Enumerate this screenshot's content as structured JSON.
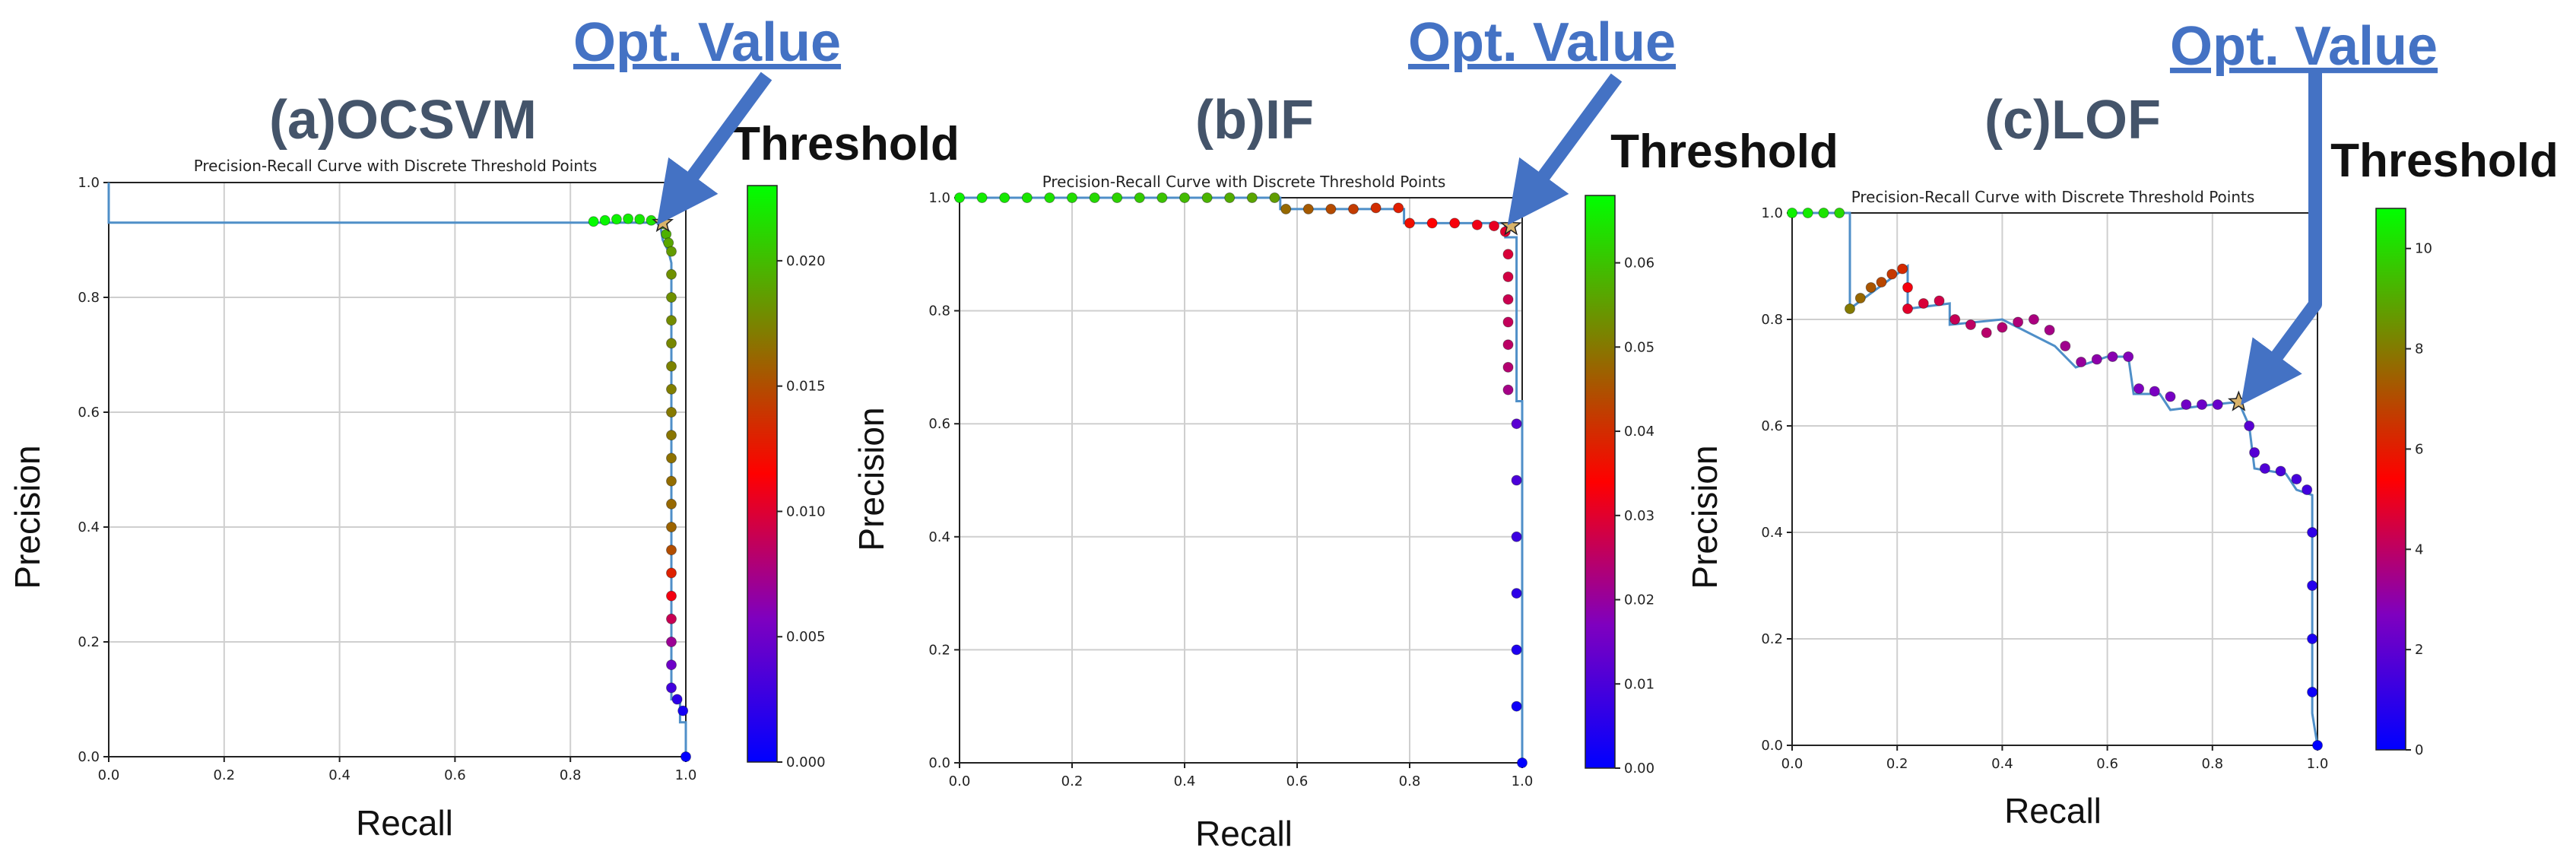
{
  "colors": {
    "annotation": "#4472c4",
    "panel_title": "#44546a",
    "line": "#4f8fc8",
    "grid": "#cfcfcf",
    "colorbar": [
      "#0000ff",
      "#7f00bf",
      "#ff0000",
      "#7f7f00",
      "#00ff00"
    ]
  },
  "chart_data": [
    {
      "type": "line",
      "panel_label": "(a)OCSVM",
      "title": "Precision-Recall Curve with Discrete Threshold Points",
      "xlabel": "Recall",
      "ylabel": "Precision",
      "xlim": [
        0,
        1
      ],
      "ylim": [
        0,
        1
      ],
      "xticks": [
        "0.0",
        "0.2",
        "0.4",
        "0.6",
        "0.8",
        "1.0"
      ],
      "yticks": [
        "0.0",
        "0.2",
        "0.4",
        "0.6",
        "0.8",
        "1.0"
      ],
      "grid": true,
      "colorbar": {
        "label": "Threshold",
        "min": 0.0,
        "max": 0.023,
        "ticks": [
          "0.000",
          "0.005",
          "0.010",
          "0.015",
          "0.020"
        ],
        "tick_values": [
          0.0,
          0.005,
          0.01,
          0.015,
          0.02
        ]
      },
      "annotation": {
        "label": "Opt. Value",
        "recall": 0.96,
        "precision": 0.93
      },
      "curve": [
        [
          0,
          1.0
        ],
        [
          0,
          0.93
        ],
        [
          0.955,
          0.93
        ],
        [
          0.96,
          0.9
        ],
        [
          0.97,
          0.88
        ],
        [
          0.975,
          0.86
        ],
        [
          0.975,
          0.1
        ],
        [
          0.99,
          0.1
        ],
        [
          0.99,
          0.06
        ],
        [
          1.0,
          0.06
        ],
        [
          1.0,
          0.0
        ]
      ],
      "points": [
        [
          0.84,
          0.932,
          0.0228
        ],
        [
          0.86,
          0.934,
          0.0226
        ],
        [
          0.88,
          0.936,
          0.0224
        ],
        [
          0.9,
          0.937,
          0.0222
        ],
        [
          0.92,
          0.936,
          0.022
        ],
        [
          0.94,
          0.934,
          0.0218
        ],
        [
          0.96,
          0.928,
          0.02
        ],
        [
          0.966,
          0.91,
          0.0195
        ],
        [
          0.97,
          0.895,
          0.019
        ],
        [
          0.975,
          0.88,
          0.0185
        ],
        [
          0.975,
          0.84,
          0.018
        ],
        [
          0.975,
          0.8,
          0.018
        ],
        [
          0.975,
          0.76,
          0.0178
        ],
        [
          0.975,
          0.72,
          0.0176
        ],
        [
          0.975,
          0.68,
          0.0174
        ],
        [
          0.975,
          0.64,
          0.0172
        ],
        [
          0.975,
          0.6,
          0.017
        ],
        [
          0.975,
          0.56,
          0.0168
        ],
        [
          0.975,
          0.52,
          0.0166
        ],
        [
          0.975,
          0.48,
          0.0164
        ],
        [
          0.975,
          0.44,
          0.0162
        ],
        [
          0.975,
          0.4,
          0.016
        ],
        [
          0.975,
          0.36,
          0.015
        ],
        [
          0.975,
          0.32,
          0.013
        ],
        [
          0.975,
          0.28,
          0.011
        ],
        [
          0.975,
          0.24,
          0.009
        ],
        [
          0.975,
          0.2,
          0.007
        ],
        [
          0.975,
          0.16,
          0.005
        ],
        [
          0.975,
          0.12,
          0.003
        ],
        [
          0.985,
          0.1,
          0.002
        ],
        [
          0.995,
          0.08,
          0.001
        ],
        [
          1.0,
          0.0,
          0.0
        ]
      ]
    },
    {
      "type": "line",
      "panel_label": "(b)IF",
      "title": "Precision-Recall Curve with Discrete Threshold Points",
      "xlabel": "Recall",
      "ylabel": "Precision",
      "xlim": [
        0,
        1
      ],
      "ylim": [
        0,
        1
      ],
      "xticks": [
        "0.0",
        "0.2",
        "0.4",
        "0.6",
        "0.8",
        "1.0"
      ],
      "yticks": [
        "0.0",
        "0.2",
        "0.4",
        "0.6",
        "0.8",
        "1.0"
      ],
      "grid": true,
      "colorbar": {
        "label": "Threshold",
        "min": 0.0,
        "max": 0.068,
        "ticks": [
          "0.00",
          "0.01",
          "0.02",
          "0.03",
          "0.04",
          "0.05",
          "0.06"
        ],
        "tick_values": [
          0.0,
          0.01,
          0.02,
          0.03,
          0.04,
          0.05,
          0.06
        ]
      },
      "annotation": {
        "label": "Opt. Value",
        "recall": 0.98,
        "precision": 0.95
      },
      "curve": [
        [
          0,
          1.0
        ],
        [
          0.57,
          1.0
        ],
        [
          0.57,
          0.98
        ],
        [
          0.79,
          0.98
        ],
        [
          0.79,
          0.955
        ],
        [
          0.97,
          0.955
        ],
        [
          0.97,
          0.93
        ],
        [
          0.99,
          0.93
        ],
        [
          0.99,
          0.64
        ],
        [
          1.0,
          0.64
        ],
        [
          1.0,
          0.0
        ]
      ],
      "points": [
        [
          0.0,
          1.0,
          0.066
        ],
        [
          0.04,
          1.0,
          0.0655
        ],
        [
          0.08,
          1.0,
          0.065
        ],
        [
          0.12,
          1.0,
          0.0645
        ],
        [
          0.16,
          1.0,
          0.064
        ],
        [
          0.2,
          1.0,
          0.0635
        ],
        [
          0.24,
          1.0,
          0.063
        ],
        [
          0.28,
          1.0,
          0.062
        ],
        [
          0.32,
          1.0,
          0.061
        ],
        [
          0.36,
          1.0,
          0.06
        ],
        [
          0.4,
          1.0,
          0.059
        ],
        [
          0.44,
          1.0,
          0.058
        ],
        [
          0.48,
          1.0,
          0.057
        ],
        [
          0.52,
          1.0,
          0.056
        ],
        [
          0.56,
          1.0,
          0.055
        ],
        [
          0.58,
          0.98,
          0.048
        ],
        [
          0.62,
          0.98,
          0.046
        ],
        [
          0.66,
          0.98,
          0.044
        ],
        [
          0.7,
          0.98,
          0.042
        ],
        [
          0.74,
          0.982,
          0.04
        ],
        [
          0.78,
          0.982,
          0.038
        ],
        [
          0.8,
          0.955,
          0.036
        ],
        [
          0.84,
          0.955,
          0.034
        ],
        [
          0.88,
          0.955,
          0.033
        ],
        [
          0.92,
          0.952,
          0.032
        ],
        [
          0.95,
          0.95,
          0.031
        ],
        [
          0.97,
          0.94,
          0.03
        ],
        [
          0.975,
          0.9,
          0.029
        ],
        [
          0.975,
          0.86,
          0.028
        ],
        [
          0.975,
          0.82,
          0.027
        ],
        [
          0.975,
          0.78,
          0.026
        ],
        [
          0.975,
          0.74,
          0.025
        ],
        [
          0.975,
          0.7,
          0.024
        ],
        [
          0.975,
          0.66,
          0.022
        ],
        [
          0.99,
          0.6,
          0.012
        ],
        [
          0.99,
          0.5,
          0.01
        ],
        [
          0.99,
          0.4,
          0.008
        ],
        [
          0.99,
          0.3,
          0.006
        ],
        [
          0.99,
          0.2,
          0.004
        ],
        [
          0.99,
          0.1,
          0.002
        ],
        [
          1.0,
          0.0,
          0.0
        ]
      ]
    },
    {
      "type": "line",
      "panel_label": "(c)LOF",
      "title": "Precision-Recall Curve with Discrete Threshold Points",
      "xlabel": "Recall",
      "ylabel": "Precision",
      "xlim": [
        0,
        1
      ],
      "ylim": [
        0,
        1
      ],
      "xticks": [
        "0.0",
        "0.2",
        "0.4",
        "0.6",
        "0.8",
        "1.0"
      ],
      "yticks": [
        "0.0",
        "0.2",
        "0.4",
        "0.6",
        "0.8",
        "1.0"
      ],
      "grid": true,
      "colorbar": {
        "label": "Threshold",
        "min": 0,
        "max": 10.8,
        "ticks": [
          "0",
          "2",
          "4",
          "6",
          "8",
          "10"
        ],
        "tick_values": [
          0,
          2,
          4,
          6,
          8,
          10
        ]
      },
      "annotation": {
        "label": "Opt. Value",
        "recall": 0.85,
        "precision": 0.645
      },
      "curve": [
        [
          0,
          1.0
        ],
        [
          0.11,
          1.0
        ],
        [
          0.11,
          0.82
        ],
        [
          0.22,
          0.9
        ],
        [
          0.22,
          0.82
        ],
        [
          0.3,
          0.83
        ],
        [
          0.3,
          0.79
        ],
        [
          0.4,
          0.8
        ],
        [
          0.5,
          0.75
        ],
        [
          0.54,
          0.71
        ],
        [
          0.6,
          0.73
        ],
        [
          0.64,
          0.73
        ],
        [
          0.65,
          0.66
        ],
        [
          0.7,
          0.66
        ],
        [
          0.72,
          0.63
        ],
        [
          0.8,
          0.64
        ],
        [
          0.85,
          0.645
        ],
        [
          0.87,
          0.6
        ],
        [
          0.88,
          0.52
        ],
        [
          0.94,
          0.51
        ],
        [
          0.96,
          0.48
        ],
        [
          0.99,
          0.47
        ],
        [
          0.99,
          0.06
        ],
        [
          1.0,
          0.0
        ]
      ],
      "points": [
        [
          0.0,
          1.0,
          10.5
        ],
        [
          0.03,
          1.0,
          10.4
        ],
        [
          0.06,
          1.0,
          10.2
        ],
        [
          0.09,
          1.0,
          10.0
        ],
        [
          0.11,
          0.82,
          8.0
        ],
        [
          0.13,
          0.84,
          7.6
        ],
        [
          0.15,
          0.86,
          7.2
        ],
        [
          0.17,
          0.87,
          6.9
        ],
        [
          0.19,
          0.885,
          6.6
        ],
        [
          0.21,
          0.895,
          6.3
        ],
        [
          0.22,
          0.86,
          5.2
        ],
        [
          0.22,
          0.82,
          4.8
        ],
        [
          0.25,
          0.83,
          4.6
        ],
        [
          0.28,
          0.835,
          4.4
        ],
        [
          0.31,
          0.8,
          4.2
        ],
        [
          0.34,
          0.79,
          4.0
        ],
        [
          0.37,
          0.775,
          3.9
        ],
        [
          0.4,
          0.785,
          3.8
        ],
        [
          0.43,
          0.795,
          3.7
        ],
        [
          0.46,
          0.8,
          3.6
        ],
        [
          0.49,
          0.78,
          3.5
        ],
        [
          0.52,
          0.75,
          3.4
        ],
        [
          0.55,
          0.72,
          3.2
        ],
        [
          0.58,
          0.725,
          3.0
        ],
        [
          0.61,
          0.73,
          2.9
        ],
        [
          0.64,
          0.73,
          2.8
        ],
        [
          0.66,
          0.67,
          2.7
        ],
        [
          0.69,
          0.665,
          2.6
        ],
        [
          0.72,
          0.655,
          2.5
        ],
        [
          0.75,
          0.64,
          2.4
        ],
        [
          0.78,
          0.64,
          2.3
        ],
        [
          0.81,
          0.64,
          2.2
        ],
        [
          0.85,
          0.645,
          2.1
        ],
        [
          0.87,
          0.6,
          1.9
        ],
        [
          0.88,
          0.55,
          1.8
        ],
        [
          0.9,
          0.52,
          1.7
        ],
        [
          0.93,
          0.515,
          1.6
        ],
        [
          0.96,
          0.5,
          1.5
        ],
        [
          0.98,
          0.48,
          1.4
        ],
        [
          0.99,
          0.4,
          1.0
        ],
        [
          0.99,
          0.3,
          0.8
        ],
        [
          0.99,
          0.2,
          0.6
        ],
        [
          0.99,
          0.1,
          0.3
        ],
        [
          1.0,
          0.0,
          0.0
        ]
      ]
    }
  ]
}
